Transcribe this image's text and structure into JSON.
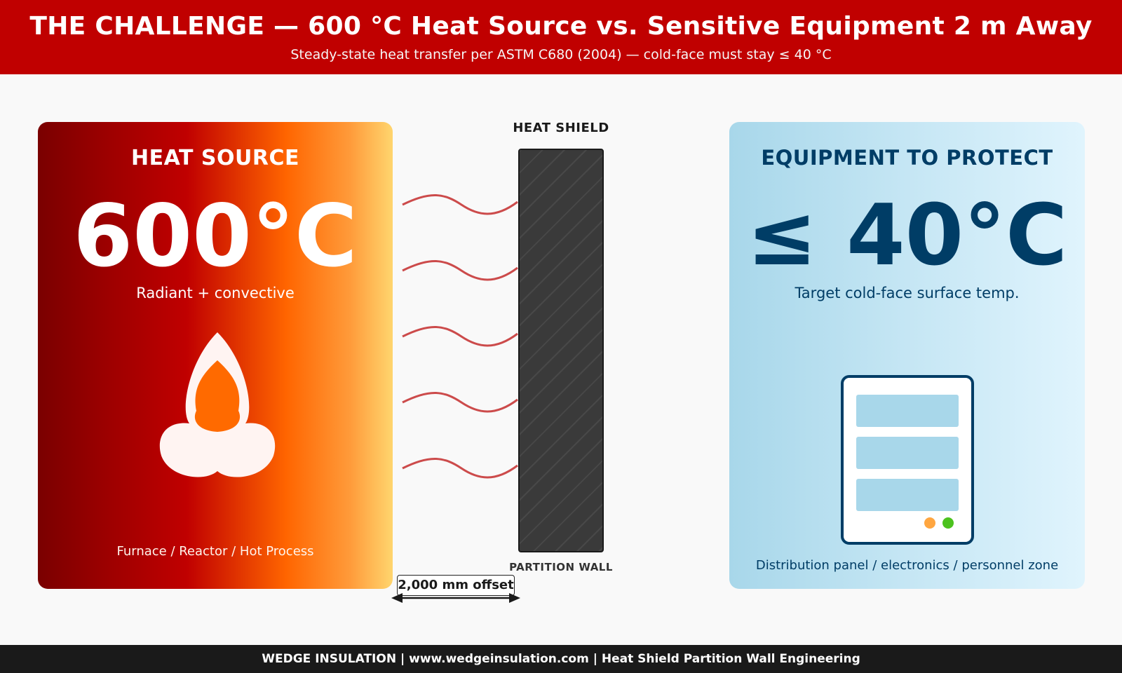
{
  "header": {
    "title": "THE CHALLENGE — 600 °C Heat Source vs. Sensitive Equipment 2 m Away",
    "subtitle": "Steady-state heat transfer per ASTM C680 (2004) — cold-face must stay ≤ 40 °C"
  },
  "heat_source": {
    "title": "HEAT SOURCE",
    "temperature": "600°C",
    "mode": "Radiant + convective",
    "examples": "Furnace / Reactor / Hot Process",
    "icon": "flame-icon"
  },
  "shield": {
    "label": "HEAT SHIELD",
    "wall_label": "PARTITION WALL",
    "offset": "2,000 mm offset"
  },
  "equipment": {
    "title": "EQUIPMENT TO PROTECT",
    "temperature": "≤ 40°C",
    "target": "Target cold-face surface temp.",
    "examples": "Distribution panel / electronics / personnel zone",
    "icon": "electrical-panel-icon"
  },
  "colors": {
    "header": "#c00000",
    "heat_wave": "#cc4b4b",
    "equipment_text": "#003d66",
    "footer": "#1a1a1a"
  },
  "footer": {
    "text": "WEDGE INSULATION | www.wedgeinsulation.com | Heat Shield Partition Wall Engineering"
  }
}
